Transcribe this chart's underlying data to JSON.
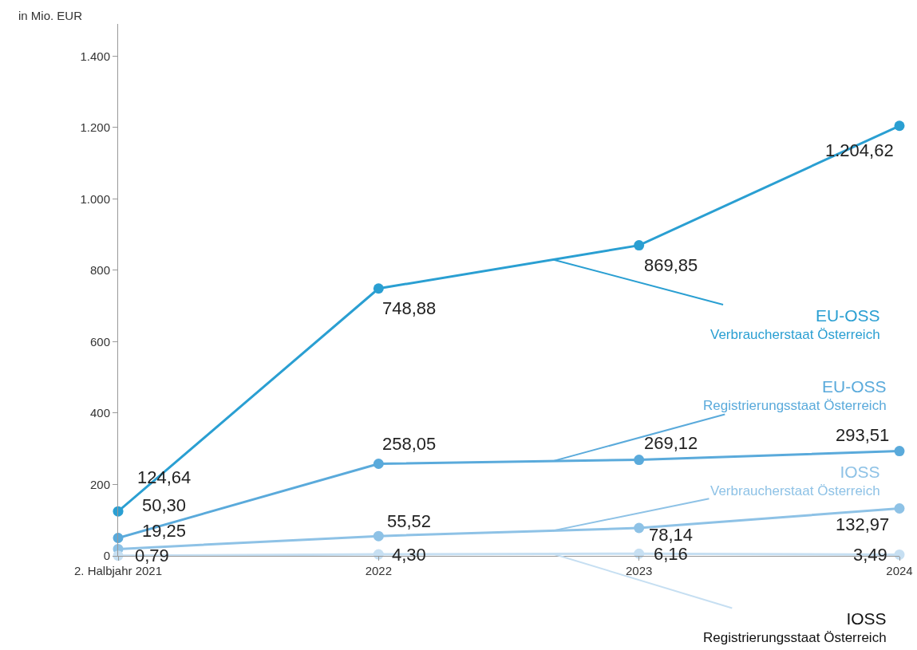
{
  "chart_data": {
    "type": "line",
    "ylabel": "in Mio. EUR",
    "categories": [
      "2. Halbjahr 2021",
      "2022",
      "2023",
      "2024"
    ],
    "ylim": [
      0,
      1490
    ],
    "yticks": [
      0,
      200,
      400,
      600,
      800,
      {
        "value": 1000,
        "label": "1.000"
      },
      {
        "value": 1200,
        "label": "1.200"
      },
      {
        "value": 1400,
        "label": "1.400"
      }
    ],
    "series": [
      {
        "name": "EU-OSS Verbraucherstaat Österreich",
        "color": "#2a9fd2",
        "values": [
          124.64,
          748.88,
          869.85,
          1204.62
        ],
        "value_labels": [
          "124,64",
          "748,88",
          "869,85",
          "1.204,62"
        ]
      },
      {
        "name": "EU-OSS Registrierungsstaat Österreich",
        "color": "#5aaadb",
        "values": [
          50.3,
          258.05,
          269.12,
          293.51
        ],
        "value_labels": [
          "50,30",
          "258,05",
          "269,12",
          "293,51"
        ]
      },
      {
        "name": "IOSS Verbraucherstaat Österreich",
        "color": "#8ec2e6",
        "values": [
          19.25,
          55.52,
          78.14,
          132.97
        ],
        "value_labels": [
          "19,25",
          "55,52",
          "78,14",
          "132,97"
        ]
      },
      {
        "name": "IOSS Registrierungsstaat Österreich",
        "color": "#c6dff2",
        "values": [
          0.79,
          4.3,
          6.16,
          3.49
        ],
        "value_labels": [
          "0,79",
          "4,30",
          "6,16",
          "3,49"
        ]
      }
    ],
    "grid": false,
    "legend": false,
    "marker": "circle",
    "line_style": "solid"
  }
}
